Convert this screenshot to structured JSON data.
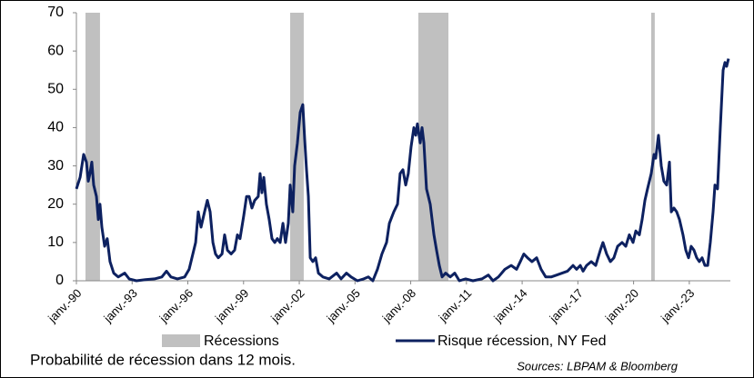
{
  "chart_data": {
    "type": "line",
    "title": "Probabilité de récession dans 12 mois.",
    "source": "Sources: LBPAM & Bloomberg",
    "xlim": [
      1990,
      2025.21
    ],
    "ylim": [
      0,
      70
    ],
    "yticks": [
      0,
      10,
      20,
      30,
      40,
      50,
      60,
      70
    ],
    "xticks": [
      {
        "value": 1990,
        "label": "janv.-90"
      },
      {
        "value": 1993,
        "label": "janv.-93"
      },
      {
        "value": 1996,
        "label": "janv.-96"
      },
      {
        "value": 1999,
        "label": "janv.-99"
      },
      {
        "value": 2002,
        "label": "janv.-02"
      },
      {
        "value": 2005,
        "label": "janv.-05"
      },
      {
        "value": 2008,
        "label": "janv.-08"
      },
      {
        "value": 2011,
        "label": "janv.-11"
      },
      {
        "value": 2014,
        "label": "janv.-14"
      },
      {
        "value": 2017,
        "label": "janv.-17"
      },
      {
        "value": 2020,
        "label": "janv.-20"
      },
      {
        "value": 2023,
        "label": "janv.-23"
      }
    ],
    "grid": false,
    "recessions": {
      "name": "Récessions",
      "color": "#c0c0c0",
      "spans": [
        [
          1990.49,
          1991.27
        ],
        [
          2001.51,
          2002.24
        ],
        [
          2008.41,
          2010.03
        ],
        [
          2020.95,
          2021.14
        ]
      ]
    },
    "series": [
      {
        "name": "Risque récession, NY Fed",
        "color": "#0d2160",
        "x": [
          1990.0,
          1990.2,
          1990.39,
          1990.54,
          1990.64,
          1990.73,
          1990.83,
          1990.93,
          1991.08,
          1991.18,
          1991.27,
          1991.37,
          1991.52,
          1991.66,
          1991.81,
          1992.01,
          1992.25,
          1992.6,
          1992.84,
          1993.23,
          1993.72,
          1994.21,
          1994.6,
          1994.85,
          1995.09,
          1995.44,
          1995.83,
          1996.07,
          1996.27,
          1996.42,
          1996.56,
          1996.71,
          1996.9,
          1997.05,
          1997.2,
          1997.35,
          1997.49,
          1997.64,
          1997.84,
          1997.98,
          1998.13,
          1998.33,
          1998.52,
          1998.67,
          1998.81,
          1999.01,
          1999.16,
          1999.3,
          1999.45,
          1999.6,
          1999.79,
          1999.89,
          1999.99,
          2000.09,
          2000.23,
          2000.38,
          2000.53,
          2000.68,
          2000.82,
          2000.97,
          2001.12,
          2001.26,
          2001.41,
          2001.51,
          2001.65,
          2001.75,
          2001.9,
          2002.05,
          2002.19,
          2002.29,
          2002.39,
          2002.49,
          2002.59,
          2002.73,
          2002.88,
          2003.03,
          2003.27,
          2003.61,
          2004.01,
          2004.25,
          2004.54,
          2004.79,
          2005.13,
          2005.47,
          2005.72,
          2005.96,
          2006.21,
          2006.45,
          2006.7,
          2006.85,
          2007.09,
          2007.29,
          2007.43,
          2007.58,
          2007.73,
          2007.87,
          2008.02,
          2008.17,
          2008.27,
          2008.36,
          2008.51,
          2008.61,
          2008.71,
          2008.85,
          2008.95,
          2009.05,
          2009.15,
          2009.25,
          2009.39,
          2009.54,
          2009.69,
          2009.88,
          2010.13,
          2010.37,
          2010.62,
          2010.96,
          2011.35,
          2011.84,
          2012.18,
          2012.43,
          2012.72,
          2013.07,
          2013.41,
          2013.7,
          2013.9,
          2014.09,
          2014.29,
          2014.53,
          2014.78,
          2015.02,
          2015.27,
          2015.56,
          2015.86,
          2016.15,
          2016.44,
          2016.74,
          2016.93,
          2017.13,
          2017.28,
          2017.47,
          2017.72,
          2017.96,
          2018.21,
          2018.35,
          2018.55,
          2018.75,
          2018.94,
          2019.14,
          2019.38,
          2019.58,
          2019.77,
          2019.97,
          2020.12,
          2020.31,
          2020.46,
          2020.61,
          2020.75,
          2020.95,
          2021.1,
          2021.19,
          2021.34,
          2021.49,
          2021.63,
          2021.78,
          2021.93,
          2022.03,
          2022.17,
          2022.32,
          2022.47,
          2022.66,
          2022.81,
          2022.96,
          2023.1,
          2023.25,
          2023.4,
          2023.54,
          2023.69,
          2023.84,
          2023.99,
          2024.13,
          2024.28,
          2024.38,
          2024.52,
          2024.67,
          2024.82,
          2024.92,
          2025.01,
          2025.11
        ],
        "values": [
          24,
          27,
          33,
          31,
          26,
          28,
          31,
          25,
          22,
          16,
          20,
          14,
          9,
          11,
          5,
          2,
          1,
          2,
          0.5,
          0,
          0.3,
          0.5,
          1,
          2.5,
          1,
          0.5,
          1,
          3,
          7,
          10,
          18,
          14,
          18,
          21,
          18,
          10,
          7,
          6,
          7,
          12,
          8,
          7,
          8,
          12,
          11,
          17,
          22,
          22,
          19,
          21,
          22,
          28,
          23,
          27,
          20,
          16,
          11,
          10,
          11,
          10,
          15,
          10,
          15,
          25,
          18,
          30,
          36,
          44,
          46,
          37,
          29,
          22,
          6,
          5,
          6,
          2,
          1,
          0.5,
          2,
          0.5,
          2,
          1,
          0,
          0.5,
          1,
          0,
          3,
          7,
          10,
          15,
          18,
          20,
          28,
          29,
          25,
          28,
          35,
          40,
          38,
          41,
          36,
          40,
          36,
          24,
          22,
          20,
          16,
          12,
          8,
          4,
          1,
          2,
          1,
          2,
          0,
          0.5,
          0,
          0.5,
          1.5,
          0,
          1,
          3,
          4,
          3,
          5,
          7,
          6,
          5,
          6,
          3,
          1,
          1,
          1.5,
          2,
          2.5,
          4,
          3,
          4,
          2.5,
          4,
          5,
          4,
          8,
          10,
          7,
          5,
          6,
          9,
          10,
          9,
          12,
          10,
          13,
          12,
          16,
          21,
          24,
          28,
          33,
          32,
          38,
          30,
          26,
          25,
          31,
          18,
          19,
          18,
          16,
          12,
          8,
          6,
          9,
          8,
          6,
          5,
          6,
          4,
          4,
          10,
          18,
          25,
          24,
          40,
          55,
          57,
          56,
          58
        ]
      }
    ]
  }
}
